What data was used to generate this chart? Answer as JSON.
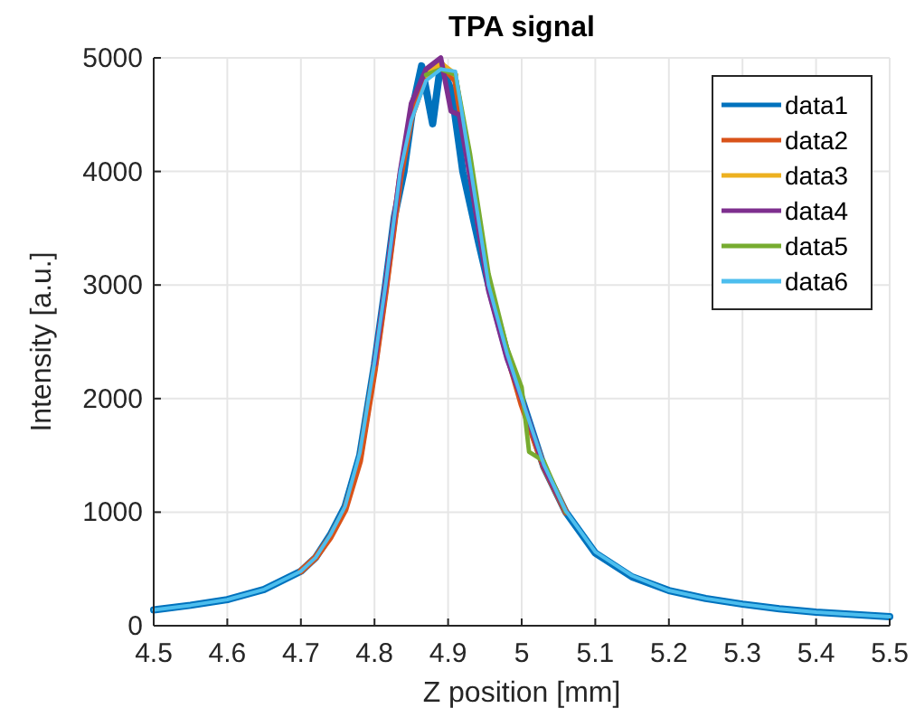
{
  "chart_data": {
    "type": "line",
    "title": "TPA signal",
    "xlabel": "Z position [mm]",
    "ylabel": "Intensity [a.u.]",
    "x": [
      4.5,
      4.55,
      4.6,
      4.65,
      4.7,
      4.72,
      4.74,
      4.76,
      4.78,
      4.8,
      4.815,
      4.835,
      4.85,
      4.87,
      4.89,
      4.91,
      4.93,
      4.955,
      4.98,
      5.0,
      5.03,
      5.06,
      5.1,
      5.15,
      5.2,
      5.25,
      5.3,
      5.35,
      5.4,
      5.45,
      5.5
    ],
    "series": [
      {
        "name": "data1",
        "color": "#0072bd",
        "x": [
          4.5,
          4.55,
          4.6,
          4.65,
          4.7,
          4.72,
          4.74,
          4.76,
          4.78,
          4.8,
          4.815,
          4.827,
          4.84,
          4.853,
          4.864,
          4.879,
          4.89,
          4.905,
          4.92,
          4.942,
          4.955,
          4.98,
          5.0,
          5.03,
          5.06,
          5.1,
          5.15,
          5.2,
          5.25,
          5.3,
          5.35,
          5.4,
          5.45,
          5.5
        ],
        "values": [
          140,
          180,
          230,
          320,
          480,
          600,
          800,
          1050,
          1500,
          2300,
          3000,
          3600,
          4000,
          4600,
          4930,
          4420,
          4950,
          4700,
          4000,
          3360,
          3000,
          2400,
          2000,
          1400,
          1000,
          640,
          430,
          310,
          240,
          190,
          150,
          120,
          100,
          80
        ]
      },
      {
        "name": "data2",
        "color": "#d95319",
        "x": [
          4.7,
          4.72,
          4.74,
          4.76,
          4.78,
          4.8,
          4.815,
          4.835,
          4.85,
          4.87,
          4.89,
          4.91,
          4.93,
          4.955,
          4.98,
          5.0,
          5.03,
          5.06
        ],
        "values": [
          480,
          600,
          780,
          1020,
          1450,
          2250,
          2950,
          3950,
          4480,
          4850,
          4950,
          4800,
          4000,
          3000,
          2400,
          1950,
          1400,
          1000
        ]
      },
      {
        "name": "data3",
        "color": "#edb120",
        "x": [
          4.87,
          4.89,
          4.91
        ],
        "values": [
          4850,
          4950,
          4850
        ]
      },
      {
        "name": "data4",
        "color": "#7e2f8e",
        "x": [
          4.8,
          4.815,
          4.835,
          4.85,
          4.87,
          4.89,
          4.904,
          4.915,
          4.93,
          4.955,
          4.98,
          5.0,
          5.03,
          5.06
        ],
        "values": [
          2300,
          3000,
          4000,
          4600,
          4900,
          5000,
          4530,
          4500,
          3950,
          2950,
          2350,
          2000,
          1400,
          1000
        ]
      },
      {
        "name": "data5",
        "color": "#77ac30",
        "x": [
          4.87,
          4.89,
          4.91,
          4.93,
          4.955,
          4.98,
          5.0,
          5.01,
          5.03,
          5.06
        ],
        "values": [
          4850,
          4900,
          4850,
          4150,
          3100,
          2450,
          2100,
          1530,
          1450,
          1000
        ]
      },
      {
        "name": "data6",
        "color": "#4dbeee",
        "values": [
          140,
          180,
          230,
          320,
          480,
          600,
          800,
          1050,
          1520,
          2320,
          3000,
          4000,
          4450,
          4800,
          4900,
          4880,
          4050,
          3000,
          2400,
          2000,
          1420,
          1010,
          650,
          440,
          310,
          240,
          190,
          150,
          120,
          100,
          80
        ]
      }
    ],
    "xlim": [
      4.5,
      5.5
    ],
    "xticks": [
      4.5,
      4.6,
      4.7,
      4.8,
      4.9,
      5,
      5.1,
      5.2,
      5.3,
      5.4,
      5.5
    ],
    "ylim": [
      0,
      5000
    ],
    "yticks": [
      0,
      1000,
      2000,
      3000,
      4000,
      5000
    ],
    "grid": true,
    "legend": "top right",
    "line_style": "solid",
    "marker": "none"
  }
}
